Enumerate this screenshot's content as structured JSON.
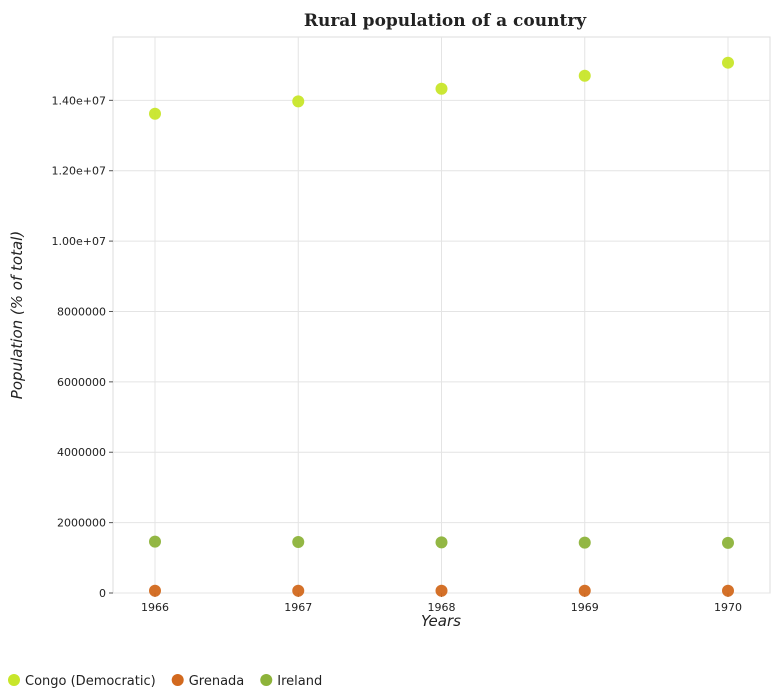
{
  "chart_data": {
    "type": "scatter",
    "title": "Rural population of a country",
    "xlabel": "Years",
    "ylabel": "Population (% of total)",
    "x": [
      "1966",
      "1967",
      "1968",
      "1969",
      "1970"
    ],
    "ylim": [
      0,
      15800000
    ],
    "yticks": [
      0,
      2000000,
      4000000,
      6000000,
      8000000,
      10000000,
      12000000,
      14000000
    ],
    "ytick_labels": [
      "0",
      "2000000",
      "4000000",
      "6000000",
      "8000000",
      "1.00e+07",
      "1.20e+07",
      "1.40e+07"
    ],
    "grid": true,
    "legend_position": "bottom-left",
    "series": [
      {
        "name": "Congo (Democratic)",
        "color": "#c8e62a",
        "values": [
          13620000,
          13970000,
          14330000,
          14700000,
          15070000
        ]
      },
      {
        "name": "Grenada",
        "color": "#d2691e",
        "values": [
          63000,
          63500,
          64000,
          64500,
          65000
        ]
      },
      {
        "name": "Ireland",
        "color": "#8db33a",
        "values": [
          1460000,
          1450000,
          1440000,
          1430000,
          1425000
        ]
      }
    ]
  }
}
